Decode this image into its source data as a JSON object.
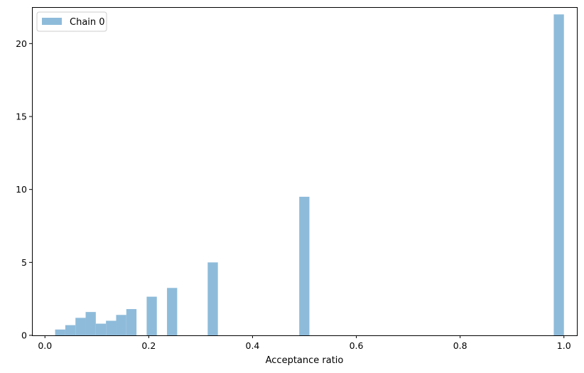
{
  "chart_data": {
    "type": "bar",
    "xlabel": "Acceptance ratio",
    "ylabel": "",
    "title": "",
    "xlim": [
      -0.025,
      1.025
    ],
    "ylim": [
      0,
      22.5
    ],
    "grid": false,
    "legend_position": "top-left",
    "bin_width": 0.0196,
    "bar_color": "#8ebbda",
    "x_ticks": [
      {
        "value": 0.0,
        "label": "0.0"
      },
      {
        "value": 0.2,
        "label": "0.2"
      },
      {
        "value": 0.4,
        "label": "0.4"
      },
      {
        "value": 0.6,
        "label": "0.6"
      },
      {
        "value": 0.8,
        "label": "0.8"
      },
      {
        "value": 1.0,
        "label": "1.0"
      }
    ],
    "y_ticks": [
      {
        "value": 0,
        "label": "0"
      },
      {
        "value": 5,
        "label": "5"
      },
      {
        "value": 10,
        "label": "10"
      },
      {
        "value": 15,
        "label": "15"
      },
      {
        "value": 20,
        "label": "20"
      }
    ],
    "series": [
      {
        "name": "Chain 0",
        "bins": [
          {
            "start": 0.0196,
            "value": 0.4
          },
          {
            "start": 0.0392,
            "value": 0.7
          },
          {
            "start": 0.0588,
            "value": 1.2
          },
          {
            "start": 0.0784,
            "value": 1.6
          },
          {
            "start": 0.098,
            "value": 0.8
          },
          {
            "start": 0.1176,
            "value": 1.0
          },
          {
            "start": 0.1372,
            "value": 1.4
          },
          {
            "start": 0.1568,
            "value": 1.8
          },
          {
            "start": 0.196,
            "value": 2.65
          },
          {
            "start": 0.2352,
            "value": 3.25
          },
          {
            "start": 0.3136,
            "value": 5.0
          },
          {
            "start": 0.49,
            "value": 9.5
          },
          {
            "start": 0.9804,
            "value": 22.0
          }
        ]
      }
    ]
  }
}
